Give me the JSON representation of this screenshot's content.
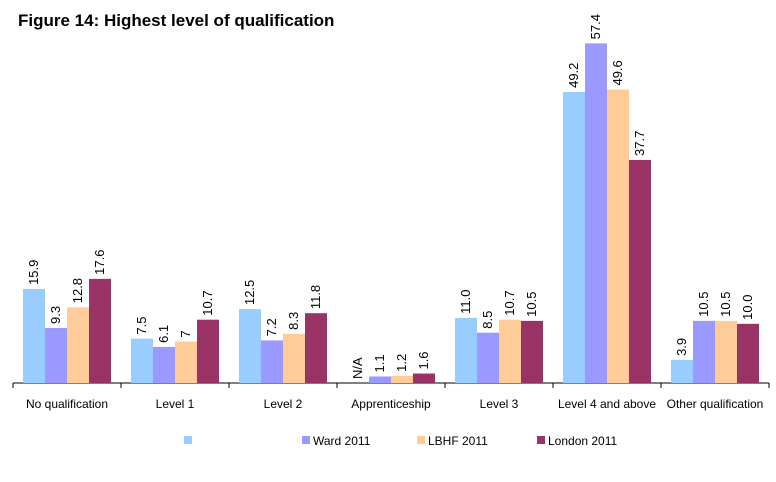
{
  "chart_data": {
    "type": "bar",
    "title": "Figure 14: Highest level of qualification",
    "categories": [
      "No qualification",
      "Level 1",
      "Level 2",
      "Apprenticeship",
      "Level 3",
      "Level 4 and above",
      "Other qualification"
    ],
    "series": [
      {
        "color": "#99ccff",
        "values": [
          15.9,
          7.5,
          12.5,
          null,
          11.0,
          49.2,
          3.9
        ],
        "value_labels": [
          "15.9",
          "7.5",
          "12.5",
          "N/A",
          "11.0",
          "49.2",
          "3.9"
        ]
      },
      {
        "name": "Ward 2011",
        "color": "#9999ff",
        "values": [
          9.3,
          6.1,
          7.2,
          1.1,
          8.5,
          57.4,
          10.5
        ],
        "value_labels": [
          "9.3",
          "6.1",
          "7.2",
          "1.1",
          "8.5",
          "57.4",
          "10.5"
        ]
      },
      {
        "name": "LBHF 2011",
        "color": "#ffcc99",
        "values": [
          12.8,
          7,
          8.3,
          1.2,
          10.7,
          49.6,
          10.5
        ],
        "value_labels": [
          "12.8",
          "7",
          "8.3",
          "1.2",
          "10.7",
          "49.6",
          "10.5"
        ]
      },
      {
        "name": "London 2011",
        "color": "#993366",
        "values": [
          17.6,
          10.7,
          11.8,
          1.6,
          10.5,
          37.7,
          10.0
        ],
        "value_labels": [
          "17.6",
          "10.7",
          "11.8",
          "1.6",
          "10.5",
          "37.7",
          "10.0"
        ]
      }
    ],
    "ylim": [
      0,
      60
    ]
  }
}
